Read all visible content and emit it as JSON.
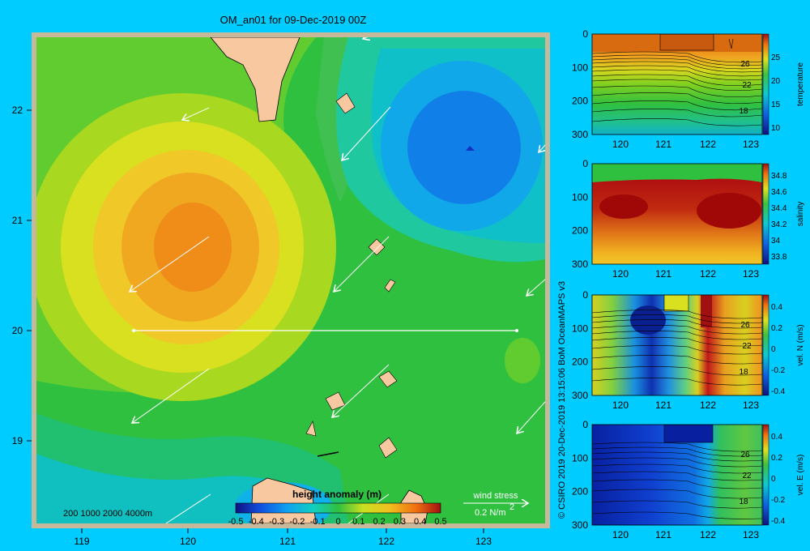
{
  "title": "OM_an01 for 09-Dec-2019 00Z",
  "map": {
    "x_ticks": [
      "119",
      "120",
      "121",
      "122",
      "123"
    ],
    "y_ticks": [
      "22",
      "21",
      "20",
      "19"
    ],
    "depth_legend": "200  1000  2000  4000m",
    "colorbar": {
      "label": "height anomaly (m)",
      "ticks": [
        "-0.5",
        "-0.4",
        "-0.3",
        "-0.2",
        "-0.1",
        "0",
        "0.1",
        "0.2",
        "0.3",
        "0.4",
        "0.5"
      ],
      "range": [
        -0.5,
        0.5
      ]
    },
    "wind_legend": {
      "label": "wind stress",
      "value": "0.2 N/m",
      "superscript": "2"
    }
  },
  "credit": "© CSIRO 2019  20-Dec-2019 13:15:06 BoM OceanMAPS v3",
  "sections": [
    {
      "label": "temperature",
      "y_ticks": [
        "0",
        "100",
        "200",
        "300"
      ],
      "x_ticks": [
        "120",
        "121",
        "122",
        "123"
      ],
      "cb_ticks": [
        "25",
        "20",
        "15",
        "10"
      ],
      "contour_labels": [
        "26",
        "22",
        "18"
      ]
    },
    {
      "label": "salinity",
      "y_ticks": [
        "0",
        "100",
        "200",
        "300"
      ],
      "x_ticks": [
        "120",
        "121",
        "122",
        "123"
      ],
      "cb_ticks": [
        "34.8",
        "34.6",
        "34.4",
        "34.2",
        "34",
        "33.8"
      ],
      "contour_labels": []
    },
    {
      "label": "vel. N  (m/s)",
      "y_ticks": [
        "0",
        "100",
        "200",
        "300"
      ],
      "x_ticks": [
        "120",
        "121",
        "122",
        "123"
      ],
      "cb_ticks": [
        "0.4",
        "0.2",
        "0",
        "-0.2",
        "-0.4"
      ],
      "contour_labels": [
        "26",
        "22",
        "18"
      ]
    },
    {
      "label": "vel. E  (m/s)",
      "y_ticks": [
        "0",
        "100",
        "200",
        "300"
      ],
      "x_ticks": [
        "120",
        "121",
        "122",
        "123"
      ],
      "cb_ticks": [
        "0.4",
        "0.2",
        "0",
        "-0.2",
        "-0.4"
      ],
      "contour_labels": [
        "26",
        "22",
        "18"
      ]
    }
  ]
}
